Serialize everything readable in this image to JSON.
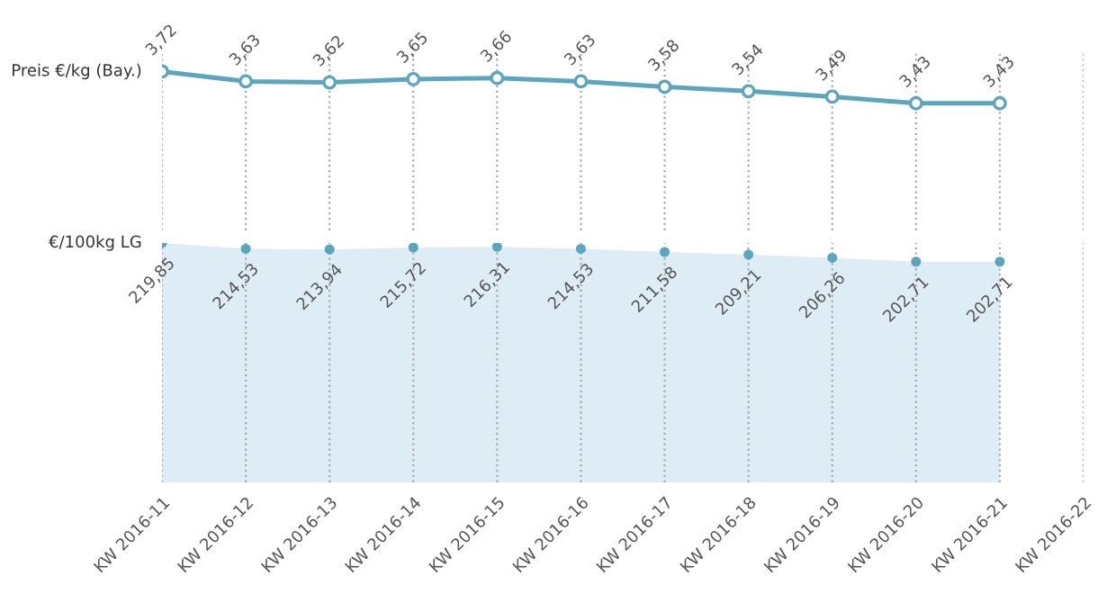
{
  "chart_data": [
    {
      "type": "line",
      "ylabel": "Preis €/kg (Bay.)",
      "series": [
        {
          "color": "#5ba6bd",
          "values": [
            3.72,
            3.63,
            3.62,
            3.65,
            3.66,
            3.63,
            3.58,
            3.54,
            3.49,
            3.43,
            3.43,
            null
          ],
          "value_labels": [
            "3,72",
            "3,63",
            "3,62",
            "3,65",
            "3,66",
            "3,63",
            "3,58",
            "3,54",
            "3,49",
            "3,43",
            "3,43",
            null
          ]
        }
      ],
      "marker": "circle",
      "grid": "x",
      "tick_labels": false
    },
    {
      "type": "area",
      "ylabel": "€/100kg LG",
      "categories": [
        "KW 2016-11",
        "KW 2016-12",
        "KW 2016-13",
        "KW 2016-14",
        "KW 2016-15",
        "KW 2016-16",
        "KW 2016-17",
        "KW 2016-18",
        "KW 2016-19",
        "KW 2016-20",
        "KW 2016-21",
        "KW 2016-22"
      ],
      "series": [
        {
          "color": "#deedf5",
          "values": [
            219.85,
            214.53,
            213.94,
            215.72,
            216.31,
            214.53,
            211.58,
            209.21,
            206.26,
            202.71,
            202.71,
            null
          ],
          "value_labels": [
            "219,85",
            "214,53",
            "213,94",
            "215,72",
            "216,31",
            "214,53",
            "211,58",
            "209,21",
            "206,26",
            "202,71",
            "202,71",
            null
          ]
        }
      ],
      "marker": "circle",
      "grid": "x",
      "tick_labels": "x"
    }
  ]
}
